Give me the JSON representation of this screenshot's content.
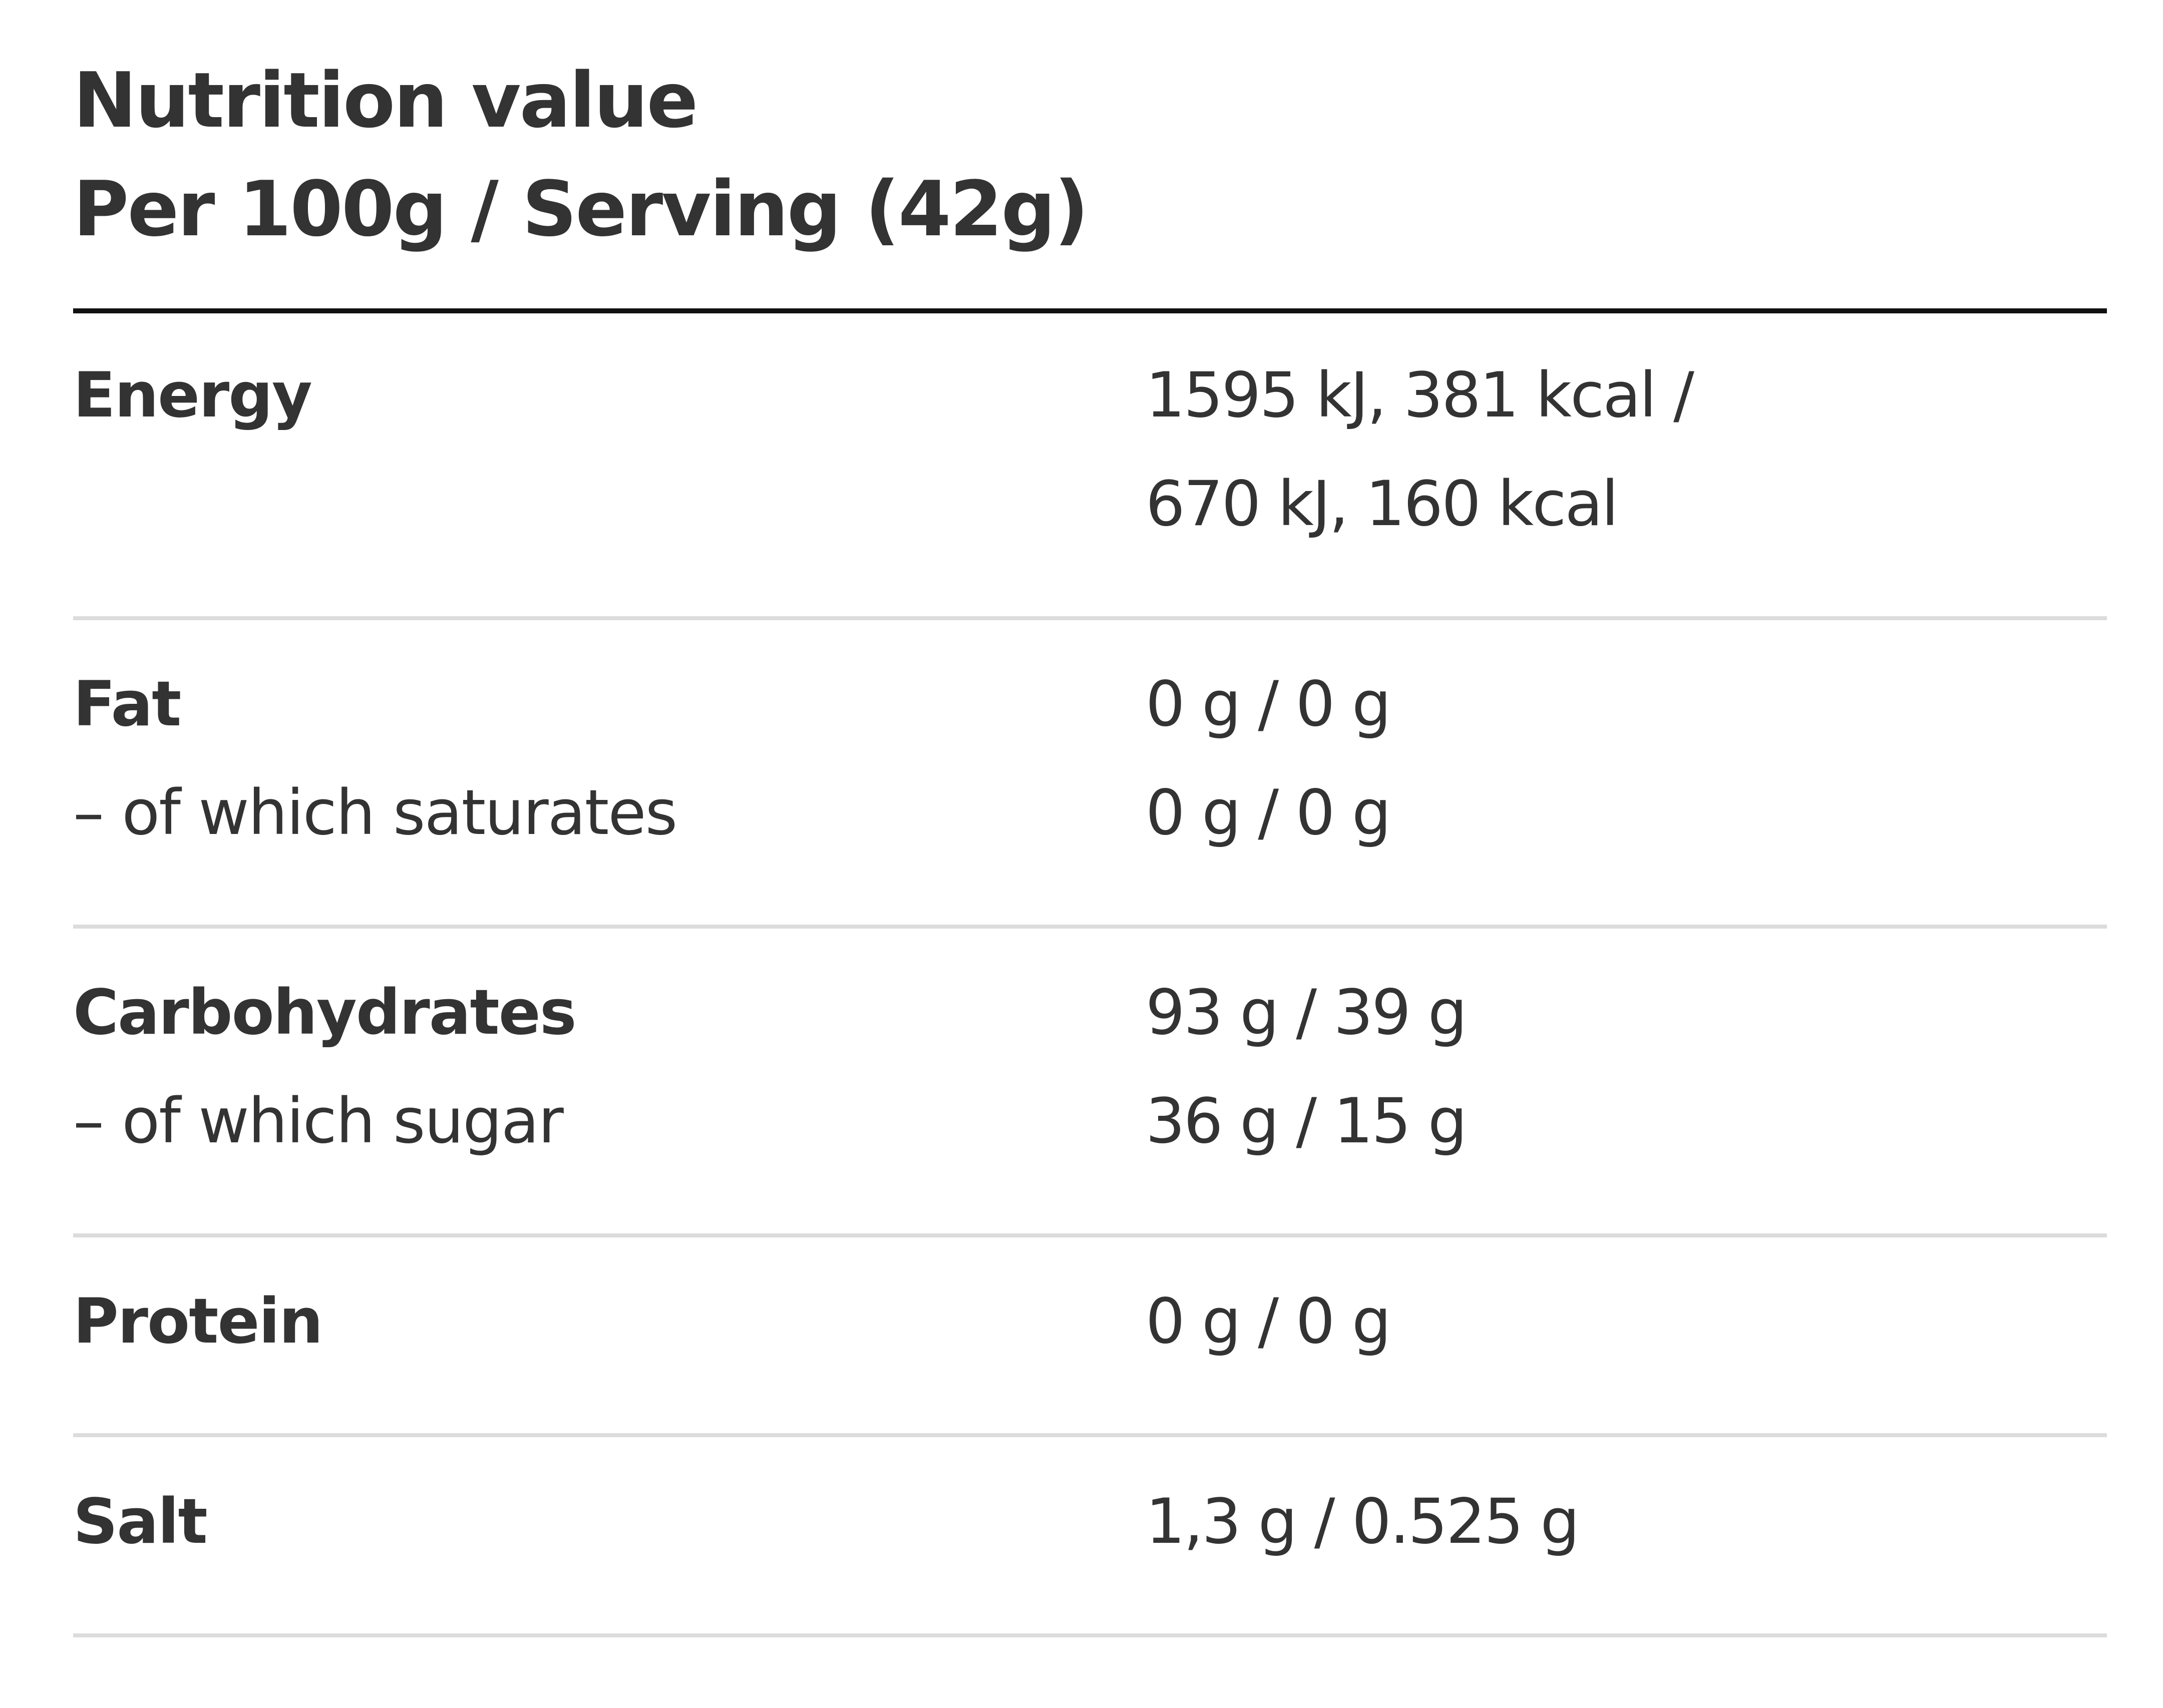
{
  "header": {
    "title": "Nutrition value",
    "subtitle": "Per 100g / Serving (42g)"
  },
  "rows": [
    {
      "label": "Energy",
      "value_line1": "1595 kJ, 381 kcal /",
      "value_line2": "670 kJ, 160 kcal"
    },
    {
      "label": "Fat",
      "value": "0 g / 0 g",
      "sub_label": "– of which saturates",
      "sub_value": "0 g / 0 g"
    },
    {
      "label": "Carbohydrates",
      "value": "93 g / 39 g",
      "sub_label": "– of which sugar",
      "sub_value": "36 g / 15 g"
    },
    {
      "label": "Protein",
      "value": "0 g / 0 g"
    },
    {
      "label": "Salt",
      "value": "1,3 g / 0.525 g"
    }
  ]
}
